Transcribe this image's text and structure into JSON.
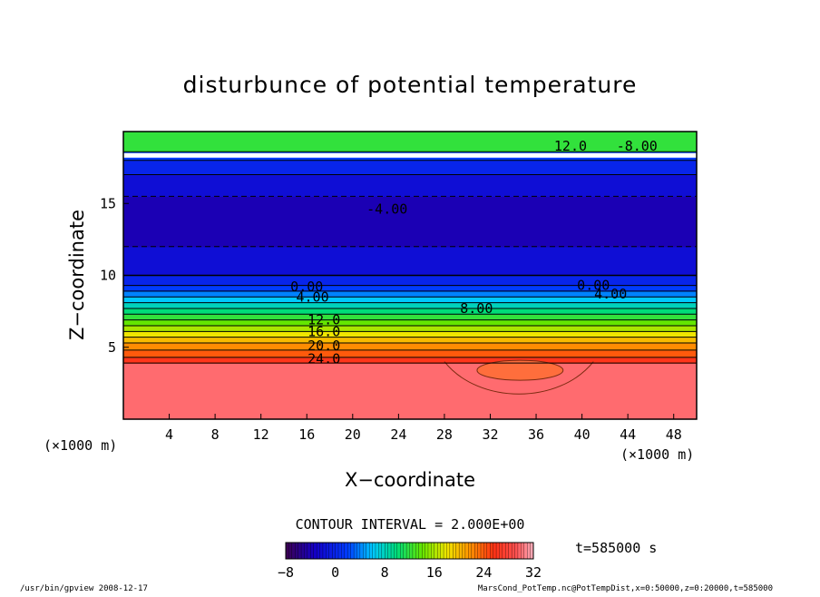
{
  "chart_data": {
    "type": "heatmap",
    "title": "disturbunce of potential temperature",
    "xlabel": "X−coordinate",
    "ylabel": "Z−coordinate",
    "x_unit_left": "(×1000 m)",
    "x_unit_right": "(×1000 m)",
    "xlim": [
      0,
      50
    ],
    "ylim": [
      0,
      20
    ],
    "xticks": [
      4,
      8,
      12,
      16,
      20,
      24,
      28,
      32,
      36,
      40,
      44,
      48
    ],
    "yticks": [
      5,
      10,
      15
    ],
    "contour_interval_text": "CONTOUR INTERVAL = 2.000E+00",
    "time_text": "t=585000 s",
    "colorbar": {
      "min": -8,
      "max": 32,
      "ticks": [
        -8,
        0,
        8,
        16,
        24,
        32
      ]
    },
    "contour_labels": [
      {
        "text": "-4.00",
        "x": 23,
        "z": 14.6
      },
      {
        "text": "0.00",
        "x": 16.0,
        "z": 9.2
      },
      {
        "text": "4.00",
        "x": 16.5,
        "z": 8.5
      },
      {
        "text": "8.00",
        "x": 30.8,
        "z": 7.7
      },
      {
        "text": "12.0",
        "x": 17.5,
        "z": 6.9
      },
      {
        "text": "16.0",
        "x": 17.5,
        "z": 6.1
      },
      {
        "text": "20.0",
        "x": 17.5,
        "z": 5.1
      },
      {
        "text": "24.0",
        "x": 17.5,
        "z": 4.2
      },
      {
        "text": "0.00",
        "x": 41.0,
        "z": 9.3
      },
      {
        "text": "4.00",
        "x": 42.5,
        "z": 8.7
      },
      {
        "text": "12.0",
        "x": 39.0,
        "z": 19.0
      },
      {
        "text": "-8.00",
        "x": 44.8,
        "z": 19.0
      }
    ],
    "bands": [
      {
        "z0": 0,
        "z1": 3.9,
        "value": 30
      },
      {
        "z0": 3.9,
        "z1": 4.3,
        "value": 26
      },
      {
        "z0": 4.3,
        "z1": 4.8,
        "value": 24
      },
      {
        "z0": 4.8,
        "z1": 5.3,
        "value": 22
      },
      {
        "z0": 5.3,
        "z1": 5.7,
        "value": 20
      },
      {
        "z0": 5.7,
        "z1": 6.1,
        "value": 18
      },
      {
        "z0": 6.1,
        "z1": 6.5,
        "value": 16
      },
      {
        "z0": 6.5,
        "z1": 6.9,
        "value": 14
      },
      {
        "z0": 6.9,
        "z1": 7.3,
        "value": 12
      },
      {
        "z0": 7.3,
        "z1": 7.7,
        "value": 10
      },
      {
        "z0": 7.7,
        "z1": 8.1,
        "value": 8
      },
      {
        "z0": 8.1,
        "z1": 8.5,
        "value": 6
      },
      {
        "z0": 8.5,
        "z1": 8.9,
        "value": 4
      },
      {
        "z0": 8.9,
        "z1": 9.3,
        "value": 2
      },
      {
        "z0": 9.3,
        "z1": 10.0,
        "value": 0
      },
      {
        "z0": 10.0,
        "z1": 12.0,
        "value": -2
      },
      {
        "z0": 12.0,
        "z1": 15.5,
        "value": -4
      },
      {
        "z0": 15.5,
        "z1": 17.0,
        "value": -2
      },
      {
        "z0": 17.0,
        "z1": 18.0,
        "value": 0
      },
      {
        "z0": 18.0,
        "z1": 18.6,
        "value": 2
      },
      {
        "z0": 18.6,
        "z1": 20.0,
        "value": 12
      }
    ]
  },
  "footer": {
    "left": "/usr/bin/gpview  2008-12-17",
    "right": "MarsCond_PotTemp.nc@PotTempDist,x=0:50000,z=0:20000,t=585000"
  },
  "colors": {
    "frame": "#000000",
    "white_stripe": "#ffffff"
  }
}
